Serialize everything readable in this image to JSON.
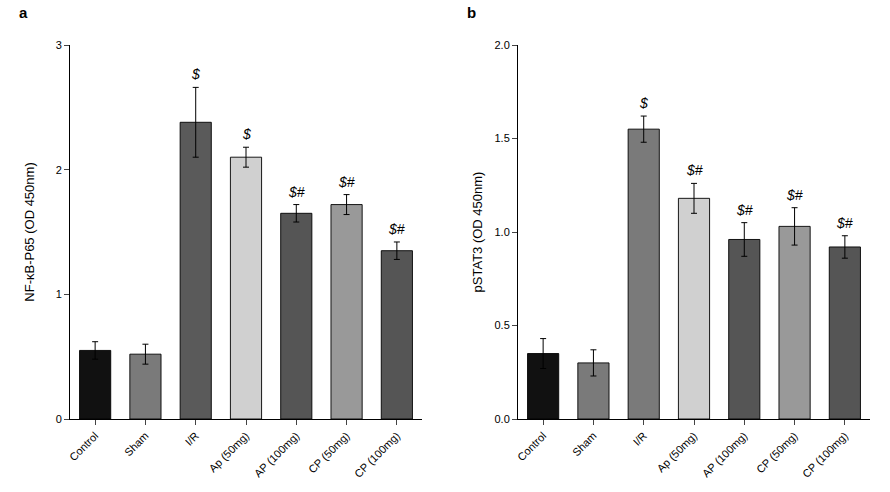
{
  "chart_data": [
    {
      "type": "bar",
      "title": "a",
      "ylabel": "NF-κB-P65 (OD 450nm)",
      "categories": [
        "Control",
        "Sham",
        "I/R",
        "Ap (50mg)",
        "AP (100mg)",
        "CP (50mg)",
        "CP (100mg)"
      ],
      "values": [
        0.55,
        0.52,
        2.38,
        2.1,
        1.65,
        1.72,
        1.35
      ],
      "errors": [
        0.07,
        0.08,
        0.28,
        0.08,
        0.07,
        0.08,
        0.07
      ],
      "colors": [
        "#111111",
        "#7a7a7a",
        "#5a5a5a",
        "#d0d0d0",
        "#555555",
        "#999999",
        "#555555"
      ],
      "annotations": [
        null,
        null,
        "$",
        "$",
        "$#",
        "$#",
        "$#"
      ],
      "ylim": [
        0,
        3.0
      ],
      "yticks": [
        0,
        1,
        2,
        3
      ],
      "grid": false
    },
    {
      "type": "bar",
      "title": "b",
      "ylabel": "pSTAT3 (OD 450nm)",
      "categories": [
        "Control",
        "Sham",
        "I/R",
        "Ap (50mg)",
        "AP (100mg)",
        "CP (50mg)",
        "CP (100mg)"
      ],
      "values": [
        0.35,
        0.3,
        1.55,
        1.18,
        0.96,
        1.03,
        0.92
      ],
      "errors": [
        0.08,
        0.07,
        0.07,
        0.08,
        0.09,
        0.1,
        0.06
      ],
      "colors": [
        "#111111",
        "#7a7a7a",
        "#7a7a7a",
        "#d0d0d0",
        "#555555",
        "#999999",
        "#555555"
      ],
      "annotations": [
        null,
        null,
        "$",
        "$#",
        "$#",
        "$#",
        "$#"
      ],
      "ylim": [
        0,
        2.0
      ],
      "yticks": [
        {
          "value": 0,
          "label": "0.0"
        },
        0.5,
        {
          "value": 1,
          "label": "1.0"
        },
        1.5,
        {
          "value": 2,
          "label": "2.0"
        }
      ],
      "grid": false
    }
  ]
}
